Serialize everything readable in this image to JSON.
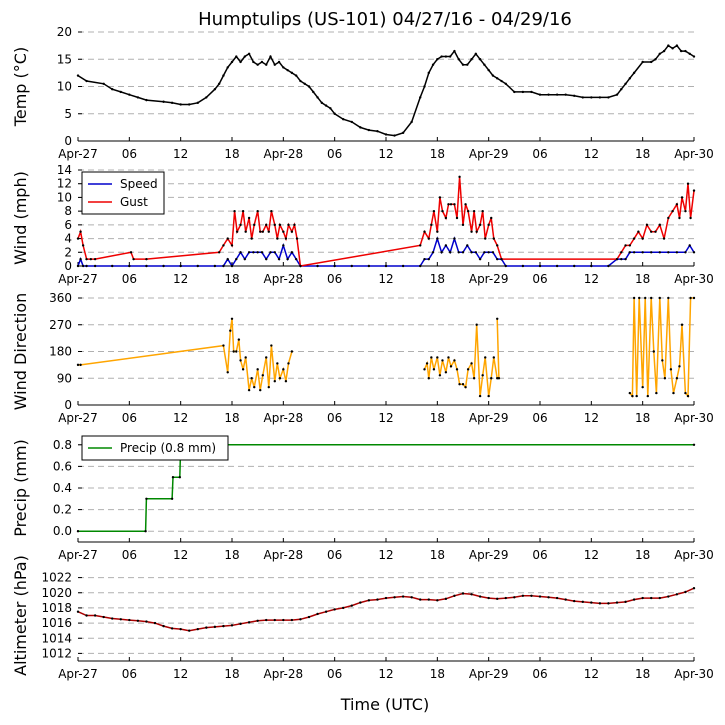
{
  "title": "Humptulips (US-101) 04/27/16 - 04/29/16",
  "xlabel": "Time (UTC)",
  "x_ticks": [
    "Apr-27",
    "06",
    "12",
    "18",
    "Apr-28",
    "06",
    "12",
    "18",
    "Apr-29",
    "06",
    "12",
    "18",
    "Apr-30"
  ],
  "colors": {
    "temp": "#000000",
    "speed": "#0000cc",
    "gust": "#ee0000",
    "direction": "#ffa500",
    "precip": "#008800",
    "altimeter": "#aa0000",
    "grid": "#b0b0b0"
  },
  "chart_data": [
    {
      "type": "line",
      "ylabel": "Temp ($^\\circ$C)",
      "ylabel_display": "Temp (°C)",
      "xlim": [
        0,
        72
      ],
      "ylim": [
        0,
        20
      ],
      "yticks": [
        0,
        5,
        10,
        15,
        20
      ],
      "grid": true,
      "series": [
        {
          "x": [
            0,
            1,
            3,
            4,
            5,
            6,
            7,
            8,
            10,
            11,
            12,
            13,
            14,
            15,
            16,
            16.5,
            17,
            17.5,
            18,
            18.5,
            19,
            19.5,
            20,
            20.5,
            21,
            21.5,
            22,
            22.5,
            23,
            23.5,
            24,
            24.5,
            25,
            25.5,
            26,
            26.5,
            27,
            27.5,
            28,
            28.5,
            29,
            29.5,
            30,
            31,
            32,
            33,
            34,
            35,
            36,
            37,
            38,
            39,
            40,
            40.5,
            41,
            41.5,
            42,
            42.5,
            43,
            43.5,
            44,
            44.5,
            45,
            45.5,
            46,
            46.5,
            47,
            47.5,
            48,
            48.5,
            49,
            49.5,
            50,
            51,
            52,
            53,
            54,
            55,
            56,
            57,
            58,
            59,
            60,
            61,
            62,
            63,
            63.5,
            64,
            64.5,
            65,
            66,
            67,
            67.5,
            68,
            68.5,
            69,
            69.5,
            70,
            70.5,
            71,
            71.5,
            72
          ],
          "y": [
            12,
            11,
            10.5,
            9.5,
            9,
            8.5,
            8,
            7.5,
            7.2,
            7,
            6.7,
            6.7,
            7,
            8,
            9.5,
            10.5,
            12,
            13.5,
            14.5,
            15.5,
            14.5,
            15.5,
            16,
            14.5,
            14,
            14.5,
            14,
            15.5,
            14,
            14.5,
            13.5,
            13,
            12.5,
            12,
            11,
            10.5,
            10,
            9,
            8,
            7,
            6.5,
            6,
            5,
            4,
            3.5,
            2.5,
            2,
            1.8,
            1.2,
            1,
            1.5,
            3.5,
            8,
            10,
            12.5,
            14,
            15,
            15.5,
            15.5,
            15.5,
            16.5,
            15,
            14,
            14,
            15,
            16,
            15,
            14,
            13,
            12,
            11.5,
            11,
            10.5,
            9,
            9,
            9,
            8.5,
            8.5,
            8.5,
            8.5,
            8.3,
            8,
            8,
            8,
            8,
            8.5,
            9.5,
            10.5,
            11.5,
            12.5,
            14.5,
            14.5,
            15,
            16,
            16.5,
            17.5,
            17,
            17.5,
            16.5,
            16.5,
            16,
            15.5
          ]
        }
      ]
    },
    {
      "type": "line",
      "ylabel": "Wind (mph)",
      "xlim": [
        0,
        72
      ],
      "ylim": [
        0,
        14
      ],
      "yticks": [
        0,
        2,
        4,
        6,
        8,
        10,
        12,
        14
      ],
      "grid": true,
      "legend": "top-left",
      "series": [
        {
          "name": "Speed",
          "x": [
            0,
            0.3,
            0.6,
            1,
            2,
            4,
            6,
            8,
            10,
            12,
            14,
            16,
            17,
            17.5,
            18,
            18.5,
            19,
            19.5,
            20,
            20.5,
            21,
            21.5,
            22,
            22.5,
            23,
            23.5,
            24,
            24.5,
            25,
            25.5,
            26,
            28,
            30,
            32,
            34,
            36,
            38,
            40,
            40.5,
            41,
            41.5,
            42,
            42.5,
            43,
            43.5,
            44,
            44.5,
            45,
            45.5,
            46,
            46.5,
            47,
            47.5,
            48,
            48.5,
            49,
            49.5,
            50,
            52,
            54,
            56,
            58,
            60,
            62,
            63,
            63.5,
            64,
            64.5,
            65,
            66,
            67,
            68,
            69,
            70,
            71,
            71.5,
            72
          ],
          "y": [
            0,
            1,
            0,
            0,
            0,
            0,
            0,
            0,
            0,
            0,
            0,
            0,
            0,
            1,
            0,
            1,
            2,
            1,
            2,
            2,
            2,
            2,
            1,
            2,
            2,
            1,
            3,
            1,
            2,
            1,
            0,
            0,
            0,
            0,
            0,
            0,
            0,
            0,
            1,
            1,
            2,
            4,
            2,
            3,
            2,
            4,
            2,
            2,
            3,
            2,
            2,
            1,
            2,
            2,
            2,
            1,
            1,
            0,
            0,
            0,
            0,
            0,
            0,
            0,
            1,
            1,
            1,
            2,
            2,
            2,
            2,
            2,
            2,
            2,
            2,
            3,
            2
          ]
        },
        {
          "name": "Gust",
          "x": [
            0,
            0.3,
            0.6,
            1,
            1.5,
            2,
            6.2,
            6.5,
            8,
            16.5,
            17,
            17.5,
            18,
            18.3,
            18.6,
            19,
            19.3,
            19.6,
            20,
            20.3,
            20.6,
            21,
            21.3,
            21.6,
            22,
            22.3,
            22.6,
            23,
            23.3,
            23.6,
            24,
            24.3,
            24.6,
            25,
            25.3,
            25.6,
            26,
            40,
            40.5,
            41,
            41.3,
            41.6,
            42,
            42.3,
            42.6,
            43,
            43.3,
            43.6,
            44,
            44.3,
            44.6,
            45,
            45.3,
            45.6,
            46,
            46.3,
            46.6,
            47,
            47.3,
            47.6,
            48,
            48.3,
            48.6,
            49,
            49.5,
            63,
            63.5,
            64,
            64.5,
            65,
            65.5,
            66,
            66.5,
            67,
            67.5,
            68,
            68.5,
            69,
            69.5,
            70,
            70.3,
            70.6,
            71,
            71.3,
            71.6,
            72
          ],
          "y": [
            4,
            5,
            3,
            1,
            1,
            1,
            2,
            1,
            1,
            2,
            3,
            4,
            3,
            8,
            5,
            6,
            8,
            5,
            7,
            4,
            6,
            8,
            5,
            5,
            6,
            5,
            8,
            6,
            4,
            6,
            5,
            4,
            6,
            5,
            6,
            4,
            0,
            3,
            5,
            4,
            6,
            8,
            5,
            10,
            8,
            7,
            9,
            9,
            9,
            7,
            13,
            6,
            9,
            8,
            5,
            8,
            5,
            6,
            8,
            4,
            6,
            7,
            4,
            3,
            1,
            1,
            2,
            3,
            3,
            4,
            5,
            4,
            6,
            5,
            5,
            6,
            4,
            7,
            8,
            9,
            7,
            10,
            8,
            12,
            7,
            11
          ]
        }
      ]
    },
    {
      "type": "scatter",
      "ylabel": "Wind Direction",
      "xlim": [
        0,
        72
      ],
      "ylim": [
        0,
        360
      ],
      "yticks": [
        0,
        90,
        180,
        270,
        360
      ],
      "grid": true,
      "series": [
        {
          "x": [
            0,
            0.3,
            17,
            17.5,
            17.8,
            18,
            18.2,
            18.5,
            18.8,
            19,
            19.3,
            19.6,
            20,
            20.3,
            20.6,
            21,
            21.3,
            21.6,
            22,
            22.3,
            22.6,
            23,
            23.3,
            23.6,
            24,
            24.3,
            24.6,
            25
          ],
          "y": [
            135,
            135,
            200,
            110,
            250,
            290,
            180,
            180,
            220,
            150,
            120,
            160,
            50,
            90,
            60,
            120,
            50,
            100,
            160,
            60,
            200,
            80,
            140,
            90,
            120,
            80,
            140,
            180
          ]
        },
        {
          "x": [
            40.5,
            40.8,
            41,
            41.3,
            41.6,
            42,
            42.3,
            42.6,
            43,
            43.3,
            43.6,
            44,
            44.3,
            44.6,
            45,
            45.3,
            45.6,
            46,
            46.3,
            46.6,
            47,
            47.3,
            47.6,
            48,
            48.3,
            48.6,
            49
          ],
          "y": [
            120,
            140,
            90,
            160,
            120,
            160,
            100,
            150,
            110,
            160,
            130,
            150,
            120,
            70,
            70,
            60,
            120,
            140,
            90,
            270,
            30,
            100,
            160,
            30,
            90,
            160,
            90
          ]
        },
        {
          "x": [
            49,
            49.2
          ],
          "y": [
            290,
            90
          ]
        },
        {
          "x": [
            64.5,
            64.8,
            65,
            65.3,
            65.6,
            66,
            66.3,
            66.6,
            67,
            67.3,
            67.6,
            68,
            68.3,
            68.6,
            69,
            69.3,
            69.6,
            70,
            70.3,
            70.6,
            71,
            71.3,
            71.6,
            72
          ],
          "y": [
            40,
            30,
            360,
            30,
            360,
            60,
            360,
            30,
            360,
            180,
            40,
            360,
            150,
            90,
            360,
            120,
            40,
            90,
            130,
            270,
            40,
            30,
            360,
            360
          ]
        }
      ]
    },
    {
      "type": "line",
      "ylabel": "Precip (mm)",
      "xlim": [
        0,
        72
      ],
      "ylim": [
        -0.1,
        0.9
      ],
      "yticks": [
        0.0,
        0.2,
        0.4,
        0.6,
        0.8
      ],
      "grid": true,
      "legend": "top-left",
      "series": [
        {
          "name": "Precip (0.8 mm)",
          "x": [
            0,
            7.9,
            8,
            11,
            11.1,
            11.9,
            12,
            72
          ],
          "y": [
            0,
            0,
            0.3,
            0.3,
            0.5,
            0.5,
            0.8,
            0.8
          ]
        }
      ]
    },
    {
      "type": "line",
      "ylabel": "Altimeter (hPa)",
      "xlim": [
        0,
        72
      ],
      "ylim": [
        1011,
        1023
      ],
      "yticks": [
        1012,
        1014,
        1016,
        1018,
        1020,
        1022
      ],
      "grid": true,
      "series": [
        {
          "x": [
            0,
            1,
            2,
            3,
            4,
            5,
            6,
            7,
            8,
            9,
            10,
            11,
            12,
            13,
            14,
            15,
            16,
            17,
            18,
            19,
            20,
            21,
            22,
            23,
            24,
            25,
            26,
            27,
            28,
            29,
            30,
            31,
            32,
            33,
            34,
            35,
            36,
            37,
            38,
            39,
            40,
            41,
            42,
            43,
            44,
            45,
            46,
            47,
            48,
            49,
            50,
            51,
            52,
            53,
            54,
            55,
            56,
            57,
            58,
            59,
            60,
            61,
            62,
            63,
            64,
            65,
            66,
            67,
            68,
            69,
            70,
            71,
            72
          ],
          "y": [
            1017.5,
            1017,
            1017,
            1016.8,
            1016.6,
            1016.5,
            1016.4,
            1016.3,
            1016.2,
            1016,
            1015.6,
            1015.3,
            1015.2,
            1015,
            1015.2,
            1015.4,
            1015.5,
            1015.6,
            1015.7,
            1015.9,
            1016.1,
            1016.3,
            1016.4,
            1016.4,
            1016.4,
            1016.4,
            1016.5,
            1016.8,
            1017.2,
            1017.5,
            1017.8,
            1018,
            1018.3,
            1018.7,
            1019,
            1019.1,
            1019.3,
            1019.4,
            1019.5,
            1019.4,
            1019.1,
            1019.1,
            1019,
            1019.2,
            1019.6,
            1019.9,
            1019.8,
            1019.5,
            1019.3,
            1019.2,
            1019.3,
            1019.4,
            1019.6,
            1019.6,
            1019.5,
            1019.4,
            1019.3,
            1019.1,
            1018.9,
            1018.8,
            1018.7,
            1018.6,
            1018.6,
            1018.7,
            1018.8,
            1019.1,
            1019.3,
            1019.3,
            1019.3,
            1019.5,
            1019.8,
            1020.1,
            1020.6
          ]
        }
      ]
    }
  ]
}
